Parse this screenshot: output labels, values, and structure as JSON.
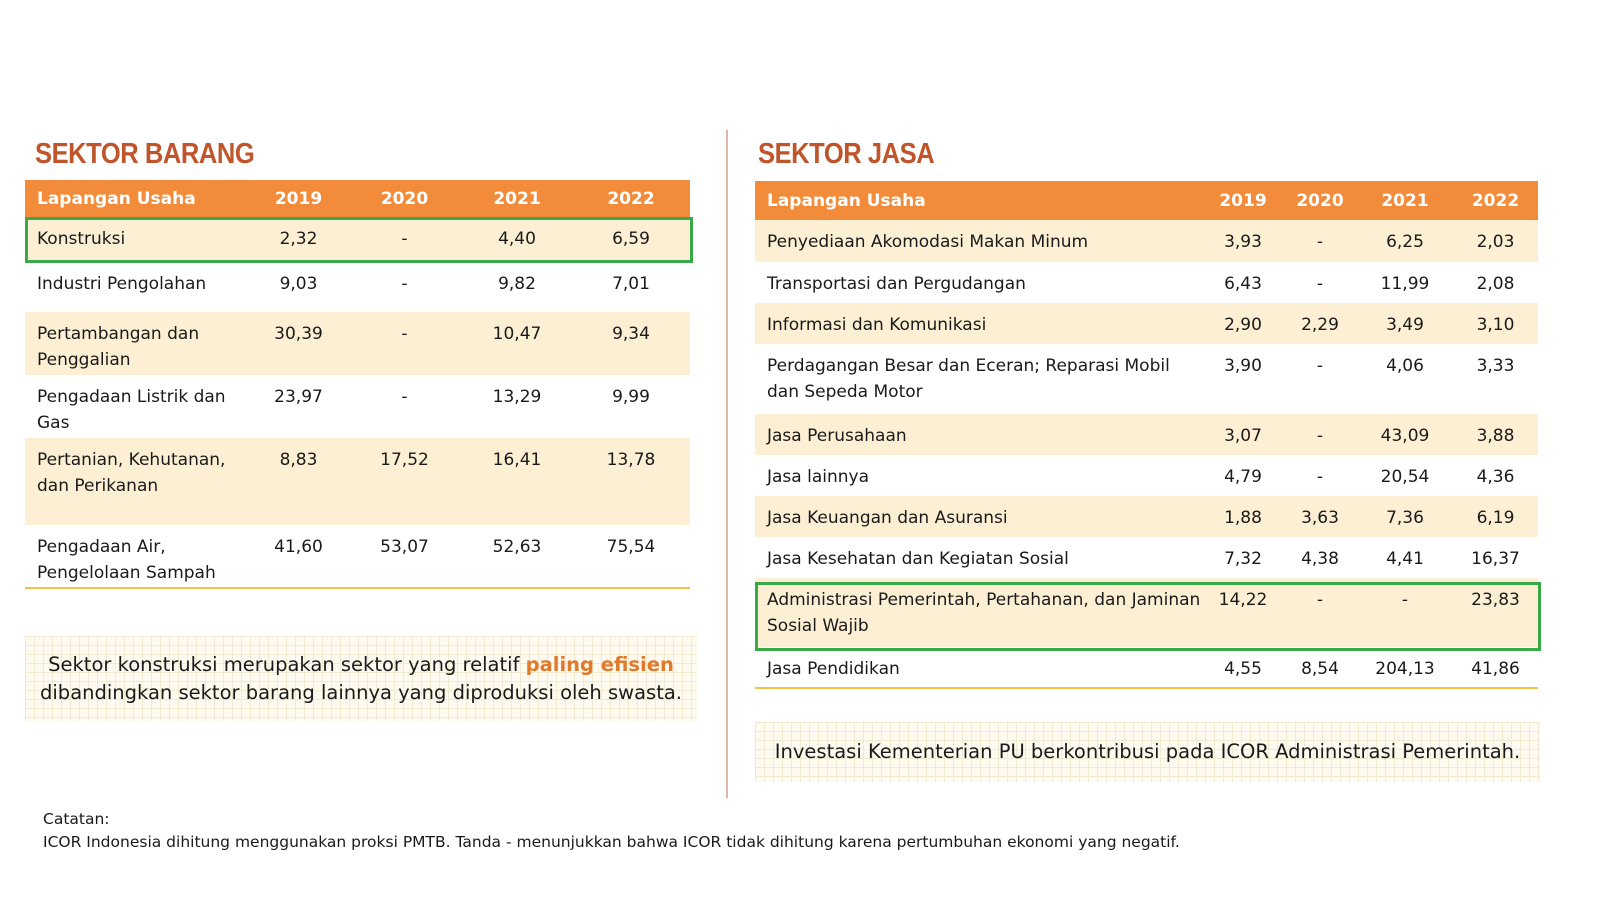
{
  "barang": {
    "title": "SEKTOR BARANG",
    "headers": [
      "Lapangan Usaha",
      "2019",
      "2020",
      "2021",
      "2022"
    ],
    "rows": [
      [
        "Konstruksi",
        "2,32",
        "-",
        "4,40",
        "6,59"
      ],
      [
        "Industri Pengolahan",
        "9,03",
        "-",
        "9,82",
        "7,01"
      ],
      [
        "Pertambangan dan Penggalian",
        "30,39",
        "-",
        "10,47",
        "9,34"
      ],
      [
        "Pengadaan Listrik dan Gas",
        "23,97",
        "-",
        "13,29",
        "9,99"
      ],
      [
        "Pertanian, Kehutanan, dan Perikanan",
        "8,83",
        "17,52",
        "16,41",
        "13,78"
      ],
      [
        "Pengadaan Air, Pengelolaan Sampah",
        "41,60",
        "53,07",
        "52,63",
        "75,54"
      ]
    ],
    "highlighted_row": "Konstruksi",
    "note_before": "Sektor konstruksi merupakan sektor yang relatif ",
    "note_emph": "paling efisien",
    "note_after": " dibandingkan sektor barang lainnya yang diproduksi oleh swasta."
  },
  "jasa": {
    "title": "SEKTOR JASA",
    "headers": [
      "Lapangan Usaha",
      "2019",
      "2020",
      "2021",
      "2022"
    ],
    "rows": [
      [
        "Penyediaan Akomodasi Makan Minum",
        "3,93",
        "-",
        "6,25",
        "2,03"
      ],
      [
        "Transportasi dan Pergudangan",
        "6,43",
        "-",
        "11,99",
        "2,08"
      ],
      [
        "Informasi dan Komunikasi",
        "2,90",
        "2,29",
        "3,49",
        "3,10"
      ],
      [
        "Perdagangan Besar dan Eceran; Reparasi Mobil dan Sepeda Motor",
        "3,90",
        "-",
        "4,06",
        "3,33"
      ],
      [
        "Jasa Perusahaan",
        "3,07",
        "-",
        "43,09",
        "3,88"
      ],
      [
        "Jasa lainnya",
        "4,79",
        "-",
        "20,54",
        "4,36"
      ],
      [
        "Jasa Keuangan dan Asuransi",
        "1,88",
        "3,63",
        "7,36",
        "6,19"
      ],
      [
        "Jasa Kesehatan dan Kegiatan Sosial",
        "7,32",
        "4,38",
        "4,41",
        "16,37"
      ],
      [
        "Administrasi Pemerintah, Pertahanan, dan Jaminan Sosial Wajib",
        "14,22",
        "-",
        "-",
        "23,83"
      ],
      [
        "Jasa Pendidikan",
        "4,55",
        "8,54",
        "204,13",
        "41,86"
      ]
    ],
    "highlighted_row": "Administrasi Pemerintah, Pertahanan, dan Jaminan Sosial Wajib",
    "note": "Investasi Kementerian PU berkontribusi pada ICOR Administrasi Pemerintah."
  },
  "footer": {
    "label": "Catatan:",
    "text": "ICOR Indonesia dihitung menggunakan proksi PMTB. Tanda - menunjukkan bahwa ICOR tidak dihitung karena pertumbuhan ekonomi  yang negatif."
  },
  "colors": {
    "title": "#c0542a",
    "header": "#f28c3a",
    "stripe": "#fdefd3",
    "highlight_border": "#3aa94a",
    "emphasis": "#e07a2a"
  }
}
